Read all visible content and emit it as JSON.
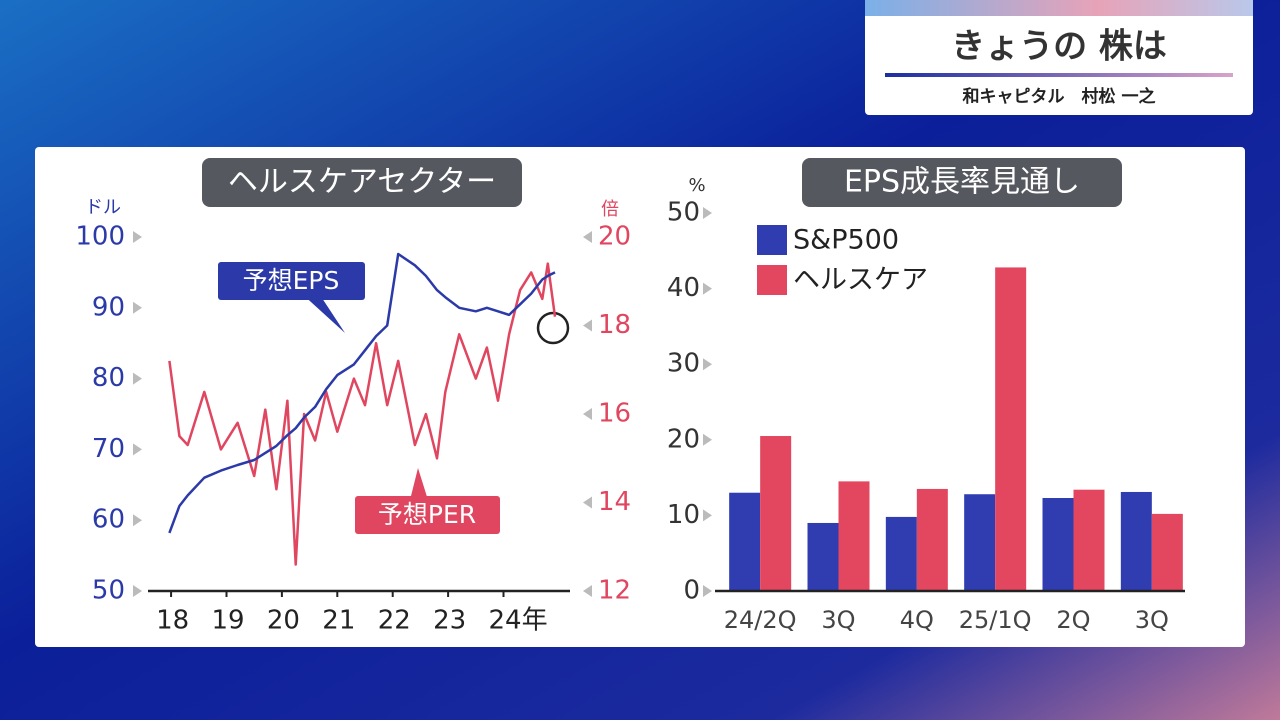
{
  "header": {
    "title": "きょうの 株は",
    "subtitle": "和キャピタル　村松 一之"
  },
  "chart_data": [
    {
      "type": "line",
      "title": "ヘルスケアセクター",
      "y_label": "ドル",
      "y2_label": "倍",
      "x": [
        17.97,
        18.15,
        18.3,
        18.6,
        18.9,
        19.2,
        19.5,
        19.7,
        19.9,
        20.1,
        20.25,
        20.4,
        20.6,
        20.8,
        21.0,
        21.3,
        21.5,
        21.7,
        21.9,
        22.1,
        22.4,
        22.6,
        22.8,
        22.95,
        23.2,
        23.5,
        23.7,
        23.9,
        24.1,
        24.3,
        24.5,
        24.7,
        24.8,
        24.93
      ],
      "xlim": [
        17.8,
        25.2
      ],
      "xticks": [
        {
          "value": 18,
          "label": "18"
        },
        {
          "value": 19,
          "label": "19"
        },
        {
          "value": 20,
          "label": "20"
        },
        {
          "value": 21,
          "label": "21"
        },
        {
          "value": 22,
          "label": "22"
        },
        {
          "value": 23,
          "label": "23"
        },
        {
          "value": 24,
          "label": "24年"
        }
      ],
      "ylim": [
        50,
        100
      ],
      "yticks": [
        50,
        60,
        70,
        80,
        90,
        100
      ],
      "y2lim": [
        12,
        20
      ],
      "y2ticks": [
        12,
        14,
        16,
        18,
        20
      ],
      "series": [
        {
          "name": "予想EPS",
          "color": "#2b3aa8",
          "values": [
            58.2,
            62,
            63.5,
            66,
            67,
            67.8,
            68.5,
            69.5,
            70.5,
            72,
            73,
            74.5,
            76,
            78.5,
            80.5,
            82,
            84,
            86,
            87.5,
            97.6,
            96,
            94.5,
            92.5,
            91.5,
            90,
            89.5,
            90,
            89.5,
            89,
            90.5,
            92,
            94,
            94.5,
            95
          ]
        },
        {
          "name": "予想PER",
          "color": "#e0465f",
          "axis": "y2",
          "values": [
            17.2,
            15.5,
            15.3,
            16.5,
            15.2,
            15.8,
            14.6,
            16.1,
            14.3,
            16.3,
            12.6,
            16.0,
            15.4,
            16.5,
            15.6,
            16.8,
            16.2,
            17.6,
            16.2,
            17.2,
            15.3,
            16.0,
            15.0,
            16.5,
            17.8,
            16.8,
            17.5,
            16.3,
            17.8,
            18.8,
            19.2,
            18.6,
            19.4,
            18.2
          ]
        }
      ]
    },
    {
      "type": "bar",
      "title": "EPS成長率見通し",
      "y_label": "%",
      "categories": [
        "24/2Q",
        "3Q",
        "4Q",
        "25/1Q",
        "2Q",
        "3Q"
      ],
      "ylim": [
        0,
        50
      ],
      "yticks": [
        0,
        10,
        20,
        30,
        40,
        50
      ],
      "legend": "upper left",
      "series": [
        {
          "name": "S&P500",
          "color": "#2f3db0",
          "values": [
            13,
            9,
            9.8,
            12.8,
            12.3,
            13.1
          ]
        },
        {
          "name": "ヘルスケア",
          "color": "#e3465f",
          "values": [
            20.5,
            14.5,
            13.5,
            42.8,
            13.4,
            10.2
          ]
        }
      ]
    }
  ]
}
